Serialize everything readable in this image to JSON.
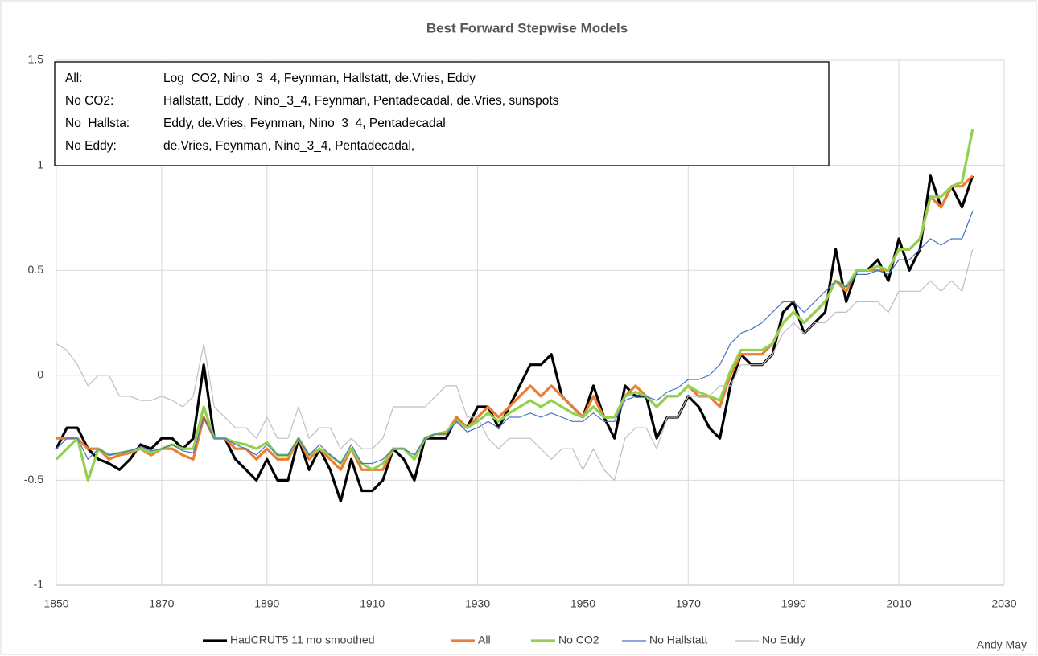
{
  "chart_data": {
    "type": "line",
    "title": "Best Forward Stepwise Models",
    "annotations": [
      {
        "label": "All:",
        "text": "Log_CO2, Nino_3_4, Feynman, Hallstatt, de.Vries,  Eddy"
      },
      {
        "label": "No CO2:",
        "text": "Hallstatt, Eddy , Nino_3_4, Feynman, Pentadecadal, de.Vries,  sunspots"
      },
      {
        "label": "No_Hallsta:",
        "text": "Eddy, de.Vries, Feynman, Nino_3_4, Pentadecadal"
      },
      {
        "label": "No Eddy:",
        "text": " de.Vries, Feynman, Nino_3_4, Pentadecadal,"
      }
    ],
    "credit": "Andy May",
    "x": [
      1850,
      1852,
      1854,
      1856,
      1858,
      1860,
      1862,
      1864,
      1866,
      1868,
      1870,
      1872,
      1874,
      1876,
      1878,
      1880,
      1882,
      1884,
      1886,
      1888,
      1890,
      1892,
      1894,
      1896,
      1898,
      1900,
      1902,
      1904,
      1906,
      1908,
      1910,
      1912,
      1914,
      1916,
      1918,
      1920,
      1922,
      1924,
      1926,
      1928,
      1930,
      1932,
      1934,
      1936,
      1938,
      1940,
      1942,
      1944,
      1946,
      1948,
      1950,
      1952,
      1954,
      1956,
      1958,
      1960,
      1962,
      1964,
      1966,
      1968,
      1970,
      1972,
      1974,
      1976,
      1978,
      1980,
      1982,
      1984,
      1986,
      1988,
      1990,
      1992,
      1994,
      1996,
      1998,
      2000,
      2002,
      2004,
      2006,
      2008,
      2010,
      2012,
      2014,
      2016,
      2018,
      2020,
      2022,
      2024
    ],
    "series": [
      {
        "name": "HadCRUT5 11 mo smoothed",
        "color": "#000000",
        "width": 3.2,
        "values": [
          -0.35,
          -0.25,
          -0.25,
          -0.35,
          -0.4,
          -0.42,
          -0.45,
          -0.4,
          -0.33,
          -0.35,
          -0.3,
          -0.3,
          -0.35,
          -0.3,
          0.05,
          -0.3,
          -0.3,
          -0.4,
          -0.45,
          -0.5,
          -0.4,
          -0.5,
          -0.5,
          -0.3,
          -0.45,
          -0.35,
          -0.45,
          -0.6,
          -0.4,
          -0.55,
          -0.55,
          -0.5,
          -0.35,
          -0.4,
          -0.5,
          -0.3,
          -0.3,
          -0.3,
          -0.2,
          -0.25,
          -0.15,
          -0.15,
          -0.25,
          -0.15,
          -0.05,
          0.05,
          0.05,
          0.1,
          -0.1,
          -0.15,
          -0.2,
          -0.05,
          -0.2,
          -0.3,
          -0.05,
          -0.1,
          -0.1,
          -0.3,
          -0.2,
          -0.2,
          -0.1,
          -0.15,
          -0.25,
          -0.3,
          -0.05,
          0.1,
          0.05,
          0.05,
          0.1,
          0.3,
          0.35,
          0.2,
          0.25,
          0.3,
          0.6,
          0.35,
          0.5,
          0.5,
          0.55,
          0.45,
          0.65,
          0.5,
          0.6,
          0.95,
          0.8,
          0.9,
          0.8,
          0.95
        ]
      },
      {
        "name": "All",
        "color": "#ed7d31",
        "width": 3.2,
        "values": [
          -0.3,
          -0.3,
          -0.3,
          -0.35,
          -0.35,
          -0.4,
          -0.38,
          -0.37,
          -0.35,
          -0.38,
          -0.35,
          -0.35,
          -0.38,
          -0.4,
          -0.2,
          -0.3,
          -0.3,
          -0.35,
          -0.35,
          -0.4,
          -0.35,
          -0.4,
          -0.4,
          -0.3,
          -0.4,
          -0.35,
          -0.4,
          -0.45,
          -0.35,
          -0.45,
          -0.45,
          -0.45,
          -0.35,
          -0.35,
          -0.4,
          -0.3,
          -0.28,
          -0.28,
          -0.2,
          -0.25,
          -0.2,
          -0.15,
          -0.2,
          -0.15,
          -0.1,
          -0.05,
          -0.1,
          -0.05,
          -0.1,
          -0.15,
          -0.2,
          -0.1,
          -0.2,
          -0.2,
          -0.1,
          -0.05,
          -0.1,
          -0.15,
          -0.1,
          -0.1,
          -0.05,
          -0.1,
          -0.1,
          -0.15,
          0.0,
          0.1,
          0.1,
          0.1,
          0.15,
          0.25,
          0.3,
          0.25,
          0.3,
          0.35,
          0.45,
          0.4,
          0.5,
          0.5,
          0.5,
          0.5,
          0.6,
          0.6,
          0.65,
          0.85,
          0.8,
          0.9,
          0.9,
          0.95
        ]
      },
      {
        "name": "No CO2",
        "color": "#92d050",
        "width": 3.2,
        "values": [
          -0.4,
          -0.35,
          -0.3,
          -0.5,
          -0.35,
          -0.38,
          -0.37,
          -0.36,
          -0.35,
          -0.37,
          -0.35,
          -0.33,
          -0.35,
          -0.35,
          -0.15,
          -0.3,
          -0.3,
          -0.32,
          -0.33,
          -0.35,
          -0.32,
          -0.38,
          -0.38,
          -0.3,
          -0.38,
          -0.35,
          -0.38,
          -0.42,
          -0.35,
          -0.42,
          -0.45,
          -0.42,
          -0.35,
          -0.35,
          -0.4,
          -0.3,
          -0.28,
          -0.27,
          -0.22,
          -0.25,
          -0.22,
          -0.18,
          -0.22,
          -0.18,
          -0.15,
          -0.12,
          -0.15,
          -0.12,
          -0.15,
          -0.18,
          -0.2,
          -0.15,
          -0.2,
          -0.2,
          -0.1,
          -0.08,
          -0.1,
          -0.15,
          -0.1,
          -0.1,
          -0.05,
          -0.08,
          -0.1,
          -0.12,
          0.02,
          0.12,
          0.12,
          0.12,
          0.15,
          0.25,
          0.3,
          0.25,
          0.3,
          0.35,
          0.45,
          0.42,
          0.5,
          0.5,
          0.52,
          0.5,
          0.6,
          0.6,
          0.65,
          0.85,
          0.85,
          0.9,
          0.92,
          1.17
        ]
      },
      {
        "name": "No Hallstatt",
        "color": "#4472c4",
        "width": 1.2,
        "values": [
          -0.35,
          -0.3,
          -0.3,
          -0.4,
          -0.35,
          -0.38,
          -0.37,
          -0.36,
          -0.34,
          -0.36,
          -0.35,
          -0.33,
          -0.36,
          -0.37,
          -0.2,
          -0.3,
          -0.3,
          -0.33,
          -0.35,
          -0.38,
          -0.33,
          -0.38,
          -0.38,
          -0.3,
          -0.38,
          -0.33,
          -0.38,
          -0.42,
          -0.33,
          -0.42,
          -0.42,
          -0.4,
          -0.35,
          -0.35,
          -0.38,
          -0.3,
          -0.28,
          -0.28,
          -0.22,
          -0.27,
          -0.25,
          -0.22,
          -0.25,
          -0.2,
          -0.2,
          -0.18,
          -0.2,
          -0.18,
          -0.2,
          -0.22,
          -0.22,
          -0.18,
          -0.22,
          -0.22,
          -0.12,
          -0.1,
          -0.1,
          -0.12,
          -0.08,
          -0.06,
          -0.02,
          -0.02,
          0.0,
          0.05,
          0.15,
          0.2,
          0.22,
          0.25,
          0.3,
          0.35,
          0.35,
          0.3,
          0.35,
          0.4,
          0.45,
          0.42,
          0.48,
          0.48,
          0.5,
          0.48,
          0.55,
          0.55,
          0.6,
          0.65,
          0.62,
          0.65,
          0.65,
          0.78
        ]
      },
      {
        "name": "No Eddy",
        "color": "#bfbfbf",
        "width": 1.2,
        "values": [
          0.15,
          0.12,
          0.05,
          -0.05,
          0.0,
          0.0,
          -0.1,
          -0.1,
          -0.12,
          -0.12,
          -0.1,
          -0.12,
          -0.15,
          -0.1,
          0.15,
          -0.15,
          -0.2,
          -0.25,
          -0.25,
          -0.3,
          -0.2,
          -0.3,
          -0.3,
          -0.15,
          -0.3,
          -0.25,
          -0.25,
          -0.35,
          -0.3,
          -0.35,
          -0.35,
          -0.3,
          -0.15,
          -0.15,
          -0.15,
          -0.15,
          -0.1,
          -0.05,
          -0.05,
          -0.2,
          -0.2,
          -0.3,
          -0.35,
          -0.3,
          -0.3,
          -0.3,
          -0.35,
          -0.4,
          -0.35,
          -0.35,
          -0.45,
          -0.35,
          -0.45,
          -0.5,
          -0.3,
          -0.25,
          -0.25,
          -0.35,
          -0.2,
          -0.2,
          -0.1,
          -0.1,
          -0.1,
          -0.05,
          -0.05,
          0.05,
          0.05,
          0.05,
          0.1,
          0.2,
          0.25,
          0.2,
          0.25,
          0.25,
          0.3,
          0.3,
          0.35,
          0.35,
          0.35,
          0.3,
          0.4,
          0.4,
          0.4,
          0.45,
          0.4,
          0.45,
          0.4,
          0.6
        ]
      }
    ],
    "xlim": [
      1850,
      2030
    ],
    "xticks": [
      1850,
      1870,
      1890,
      1910,
      1930,
      1950,
      1970,
      1990,
      2010,
      2030
    ],
    "ylim": [
      -1,
      1.5
    ],
    "yticks": [
      1.5,
      1,
      0.5,
      0,
      -0.5,
      -1
    ],
    "grid": true
  }
}
